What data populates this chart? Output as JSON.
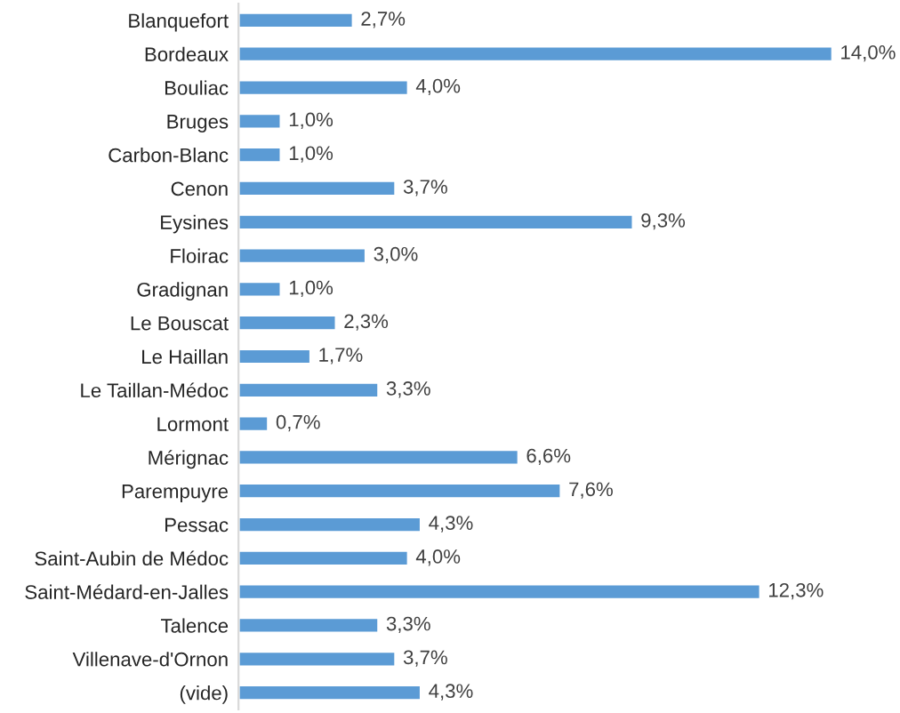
{
  "chart_data": {
    "type": "bar",
    "orientation": "horizontal",
    "color": "#5b9bd5",
    "categories": [
      "Blanquefort",
      "Bordeaux",
      "Bouliac",
      "Bruges",
      "Carbon-Blanc",
      "Cenon",
      "Eysines",
      "Floirac",
      "Gradignan",
      "Le Bouscat",
      "Le Haillan",
      "Le Taillan-Médoc",
      "Lormont",
      "Mérignac",
      "Parempuyre",
      "Pessac",
      "Saint-Aubin de Médoc",
      "Saint-Médard-en-Jalles",
      "Talence",
      "Villenave-d'Ornon",
      "(vide)"
    ],
    "values": [
      2.7,
      14.0,
      4.0,
      1.0,
      1.0,
      3.7,
      9.3,
      3.0,
      1.0,
      2.3,
      1.7,
      3.3,
      0.7,
      6.6,
      7.6,
      4.3,
      4.0,
      12.3,
      3.3,
      3.7,
      4.3
    ],
    "value_labels": [
      "2,7%",
      "14,0%",
      "4,0%",
      "1,0%",
      "1,0%",
      "3,7%",
      "9,3%",
      "3,0%",
      "1,0%",
      "2,3%",
      "1,7%",
      "3,3%",
      "0,7%",
      "6,6%",
      "7,6%",
      "4,3%",
      "4,0%",
      "12,3%",
      "3,3%",
      "3,7%",
      "4,3%"
    ],
    "tick_labels": "y",
    "grid": false,
    "legend": false
  }
}
